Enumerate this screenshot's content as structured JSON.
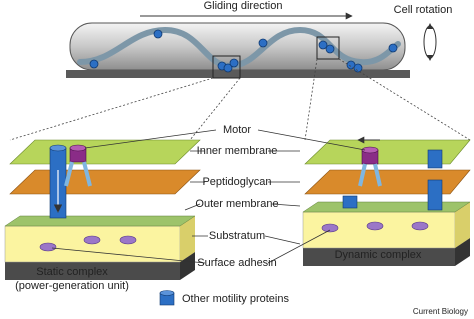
{
  "top": {
    "direction": "Gliding direction",
    "rotation": "Cell rotation"
  },
  "labels": {
    "motor": "Motor",
    "inner_membrane": "Inner membrane",
    "peptidoglycan": "Peptidoglycan",
    "outer_membrane": "Outer membrane",
    "substratum": "Substratum",
    "surface_adhesin": "Surface adhesin"
  },
  "complexes": {
    "static": [
      "Static complex",
      "(power-generation unit)"
    ],
    "dynamic": "Dynamic complex"
  },
  "legend": "Other motility proteins",
  "credit": "Current Biology"
}
